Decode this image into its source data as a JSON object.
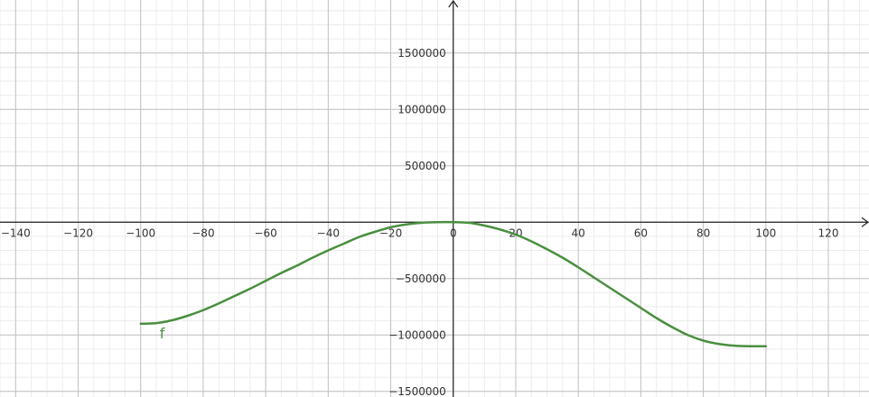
{
  "chart_data": {
    "type": "line",
    "title": "",
    "xlabel": "",
    "ylabel": "",
    "xlim": [
      -145,
      133
    ],
    "ylim": [
      -1550000,
      1970000
    ],
    "grid": true,
    "x_ticks": [
      -140,
      -120,
      -100,
      -80,
      -60,
      -40,
      -20,
      0,
      20,
      40,
      60,
      80,
      100,
      120
    ],
    "x_tick_labels": [
      "−140",
      "−120",
      "−100",
      "−80",
      "−60",
      "−40",
      "−20",
      "0",
      "20",
      "40",
      "60",
      "80",
      "100",
      "120"
    ],
    "y_ticks": [
      1500000,
      1000000,
      500000,
      -500000,
      -1000000,
      -1500000
    ],
    "y_tick_labels": [
      "1500000",
      "1000000",
      "500000",
      "−500000",
      "−1000000",
      "−1500000"
    ],
    "series": [
      {
        "name": "f",
        "color": "#4a8f3f",
        "x": [
          -100,
          -95,
          -90,
          -85,
          -80,
          -75,
          -70,
          -65,
          -60,
          -55,
          -50,
          -45,
          -40,
          -35,
          -30,
          -25,
          -20,
          -15,
          -10,
          -5,
          0,
          5,
          10,
          15,
          20,
          25,
          30,
          35,
          40,
          45,
          50,
          55,
          60,
          65,
          70,
          75,
          80,
          85,
          90,
          95,
          100
        ],
        "y": [
          -900000,
          -895000,
          -870000,
          -830000,
          -780000,
          -720000,
          -655000,
          -590000,
          -520000,
          -450000,
          -385000,
          -315000,
          -250000,
          -190000,
          -130000,
          -85000,
          -45000,
          -20000,
          -5000,
          0,
          0,
          -5000,
          -30000,
          -65000,
          -110000,
          -170000,
          -240000,
          -315000,
          -400000,
          -490000,
          -580000,
          -670000,
          -760000,
          -850000,
          -930000,
          -1000000,
          -1050000,
          -1080000,
          -1095000,
          -1100000,
          -1100000
        ]
      }
    ]
  }
}
